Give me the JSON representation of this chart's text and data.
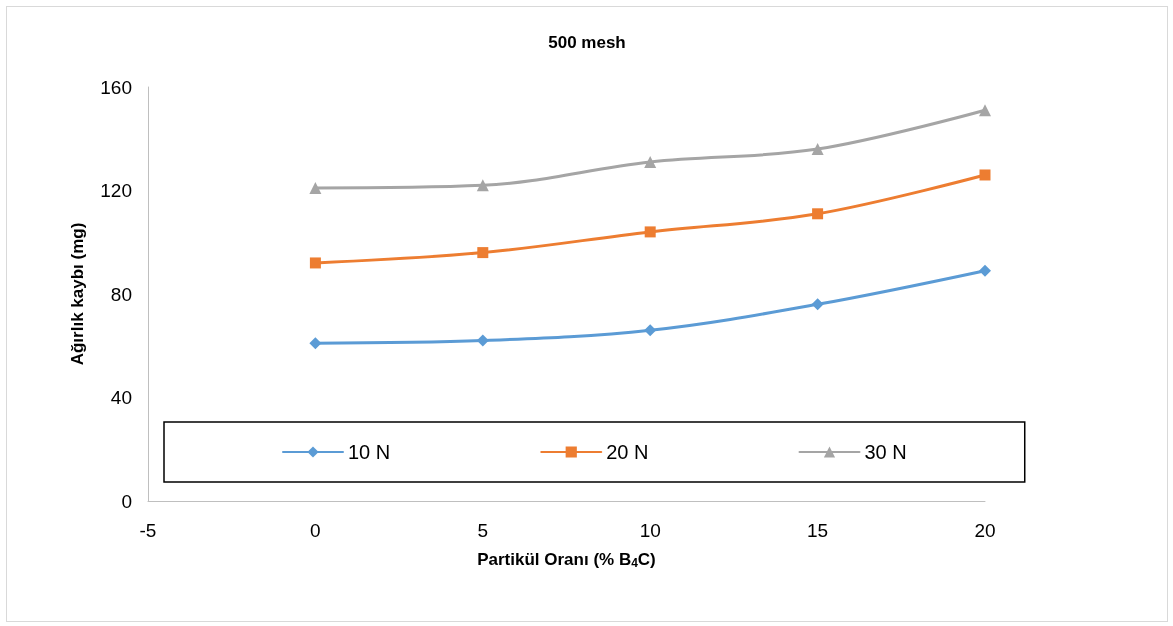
{
  "chart_data": {
    "type": "line",
    "title": "500 mesh",
    "xlabel": "Partikül Oranı (% B$_{4}$C)",
    "ylabel": "Ağırlık kaybı (mg)",
    "x": [
      0,
      5,
      10,
      15,
      20
    ],
    "series": [
      {
        "name": "10 N",
        "color": "#5b9bd5",
        "marker": "diamond",
        "values": [
          61,
          62,
          66,
          76,
          89
        ]
      },
      {
        "name": "20 N",
        "color": "#ed7d31",
        "marker": "square",
        "values": [
          92,
          96,
          104,
          111,
          126
        ]
      },
      {
        "name": "30 N",
        "color": "#a5a5a5",
        "marker": "triangle",
        "values": [
          121,
          122,
          131,
          136,
          151
        ]
      }
    ],
    "xlim": [
      -5,
      20
    ],
    "xticks": [
      -5,
      0,
      5,
      10,
      15,
      20
    ],
    "ylim": [
      0,
      160
    ],
    "yticks": [
      0,
      40,
      80,
      120,
      160
    ],
    "grid": false,
    "legend": "bottom"
  }
}
